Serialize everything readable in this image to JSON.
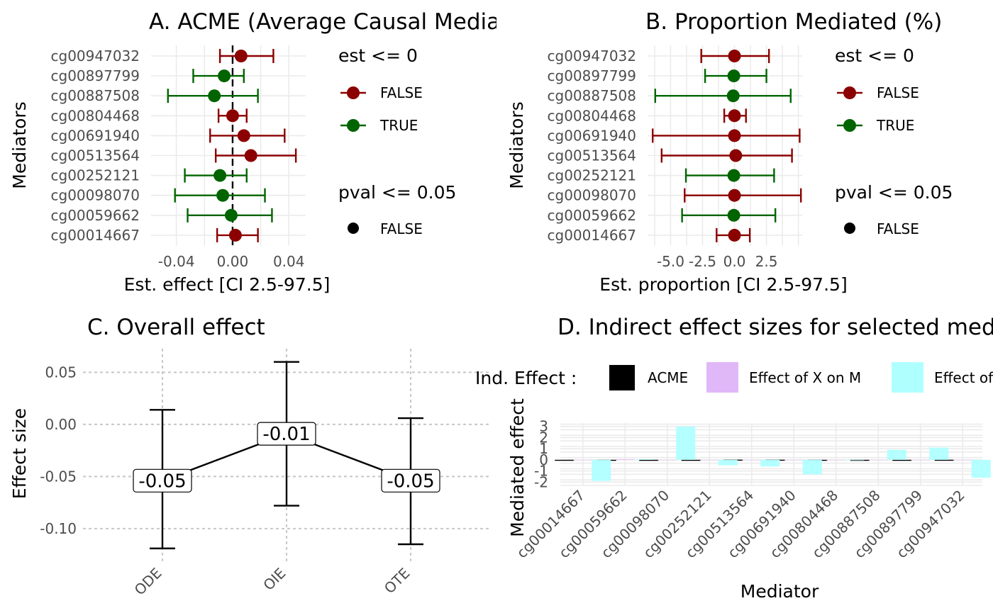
{
  "colors": {
    "false": "#8B0000",
    "true": "#006400",
    "acme": "#000000",
    "x_on_m": "#E0B8F8",
    "m_on_y": "#B0FFFF"
  },
  "chart_data": [
    {
      "type": "scatter",
      "title": "A. ACME (Average Causal Mediation Effect)",
      "xlabel": "Est. effect [CI 2.5-97.5]",
      "ylabel": "Mediators",
      "x_ticks": [
        "-0.04",
        "0.00",
        "0.04"
      ],
      "xlim": [
        -0.058,
        0.052
      ],
      "reference_line": 0,
      "grid": true,
      "legend": {
        "position": "right",
        "groups": [
          {
            "title": "est <= 0",
            "entries": [
              "FALSE",
              "TRUE"
            ]
          },
          {
            "title": "pval <= 0.05",
            "entries": [
              "FALSE"
            ]
          }
        ]
      },
      "points": [
        {
          "mediator": "cg00947032",
          "est": 0.006,
          "lower": -0.009,
          "upper": 0.029,
          "est_le_0": "FALSE"
        },
        {
          "mediator": "cg00897799",
          "est": -0.006,
          "lower": -0.028,
          "upper": 0.008,
          "est_le_0": "TRUE"
        },
        {
          "mediator": "cg00887508",
          "est": -0.013,
          "lower": -0.046,
          "upper": 0.018,
          "est_le_0": "TRUE"
        },
        {
          "mediator": "cg00804468",
          "est": 0.0,
          "lower": -0.01,
          "upper": 0.01,
          "est_le_0": "FALSE"
        },
        {
          "mediator": "cg00691940",
          "est": 0.008,
          "lower": -0.016,
          "upper": 0.037,
          "est_le_0": "FALSE"
        },
        {
          "mediator": "cg00513564",
          "est": 0.013,
          "lower": -0.012,
          "upper": 0.045,
          "est_le_0": "FALSE"
        },
        {
          "mediator": "cg00252121",
          "est": -0.009,
          "lower": -0.034,
          "upper": 0.01,
          "est_le_0": "TRUE"
        },
        {
          "mediator": "cg00098070",
          "est": -0.007,
          "lower": -0.041,
          "upper": 0.023,
          "est_le_0": "TRUE"
        },
        {
          "mediator": "cg00059662",
          "est": -0.001,
          "lower": -0.032,
          "upper": 0.028,
          "est_le_0": "TRUE"
        },
        {
          "mediator": "cg00014667",
          "est": 0.002,
          "lower": -0.011,
          "upper": 0.018,
          "est_le_0": "FALSE"
        }
      ]
    },
    {
      "type": "scatter",
      "title": "B. Proportion Mediated (%)",
      "xlabel": "Est. proportion [CI 2.5-97.5]",
      "ylabel": "Mediators",
      "x_ticks": [
        "-5.0",
        "-2.5",
        "0.0",
        "2.5"
      ],
      "xlim": [
        -6.8,
        5.3
      ],
      "grid": true,
      "legend": {
        "position": "right",
        "groups": [
          {
            "title": "est <= 0",
            "entries": [
              "FALSE",
              "TRUE"
            ]
          },
          {
            "title": "pval <= 0.05",
            "entries": [
              "FALSE"
            ]
          }
        ]
      },
      "points": [
        {
          "mediator": "cg00947032",
          "est": 0.0,
          "lower": -2.6,
          "upper": 2.7,
          "est_le_0": "FALSE"
        },
        {
          "mediator": "cg00897799",
          "est": -0.05,
          "lower": -2.3,
          "upper": 2.5,
          "est_le_0": "TRUE"
        },
        {
          "mediator": "cg00887508",
          "est": -0.1,
          "lower": -6.2,
          "upper": 4.4,
          "est_le_0": "TRUE"
        },
        {
          "mediator": "cg00804468",
          "est": 0.0,
          "lower": -0.8,
          "upper": 0.9,
          "est_le_0": "FALSE"
        },
        {
          "mediator": "cg00691940",
          "est": 0.0,
          "lower": -6.4,
          "upper": 5.1,
          "est_le_0": "FALSE"
        },
        {
          "mediator": "cg00513564",
          "est": 0.1,
          "lower": -5.7,
          "upper": 4.5,
          "est_le_0": "FALSE"
        },
        {
          "mediator": "cg00252121",
          "est": -0.05,
          "lower": -3.8,
          "upper": 3.1,
          "est_le_0": "TRUE"
        },
        {
          "mediator": "cg00098070",
          "est": 0.0,
          "lower": -3.9,
          "upper": 5.2,
          "est_le_0": "FALSE"
        },
        {
          "mediator": "cg00059662",
          "est": -0.05,
          "lower": -4.1,
          "upper": 3.2,
          "est_le_0": "TRUE"
        },
        {
          "mediator": "cg00014667",
          "est": 0.0,
          "lower": -1.4,
          "upper": 1.2,
          "est_le_0": "FALSE"
        }
      ]
    },
    {
      "type": "line",
      "title": "C. Overall effect",
      "xlabel": "",
      "ylabel": "Effect size",
      "categories": [
        "ODE",
        "OIE",
        "OTE"
      ],
      "values": [
        -0.054,
        -0.009,
        -0.054
      ],
      "labels": [
        "-0.05",
        "-0.01",
        "-0.05"
      ],
      "lower": [
        -0.119,
        -0.078,
        -0.115
      ],
      "upper": [
        0.014,
        0.06,
        0.006
      ],
      "y_ticks": [
        0.05,
        0.0,
        -0.05,
        -0.1
      ],
      "y_tick_labels": [
        "0.05",
        "0.00",
        "-0.05",
        "-0.10"
      ],
      "ylim": [
        -0.132,
        0.072
      ],
      "grid": true
    },
    {
      "type": "bar",
      "title": "D. Indirect effect sizes for selected mediators",
      "xlabel": "Mediator",
      "ylabel": "Mediated effect",
      "legend": {
        "position": "top",
        "title": "Ind. Effect :",
        "entries": [
          "ACME",
          "Effect of X on M",
          "Effect of M on Y"
        ]
      },
      "categories": [
        "cg00014667",
        "cg00059662",
        "cg00098070",
        "cg00252121",
        "cg00513564",
        "cg00691940",
        "cg00804468",
        "cg00887508",
        "cg00897799",
        "cg00947032"
      ],
      "y_ticks": [
        3,
        2,
        1,
        0,
        -1,
        -2
      ],
      "ylim": [
        -2.3,
        3.3
      ],
      "grid": true,
      "series": [
        {
          "name": "ACME",
          "values": [
            0.002,
            -0.001,
            -0.007,
            -0.009,
            0.013,
            0.008,
            0.0,
            -0.013,
            -0.006,
            0.006
          ]
        },
        {
          "name": "Effect of X on M",
          "values": [
            0.0,
            0.06,
            0.0,
            0.0,
            0.0,
            0.0,
            0.0,
            0.0,
            0.0,
            0.0
          ]
        },
        {
          "name": "Effect of M on Y",
          "values": [
            -1.9,
            0.05,
            3.0,
            -0.5,
            -0.6,
            -1.3,
            0.0,
            0.9,
            1.1,
            -1.6
          ]
        }
      ]
    }
  ]
}
